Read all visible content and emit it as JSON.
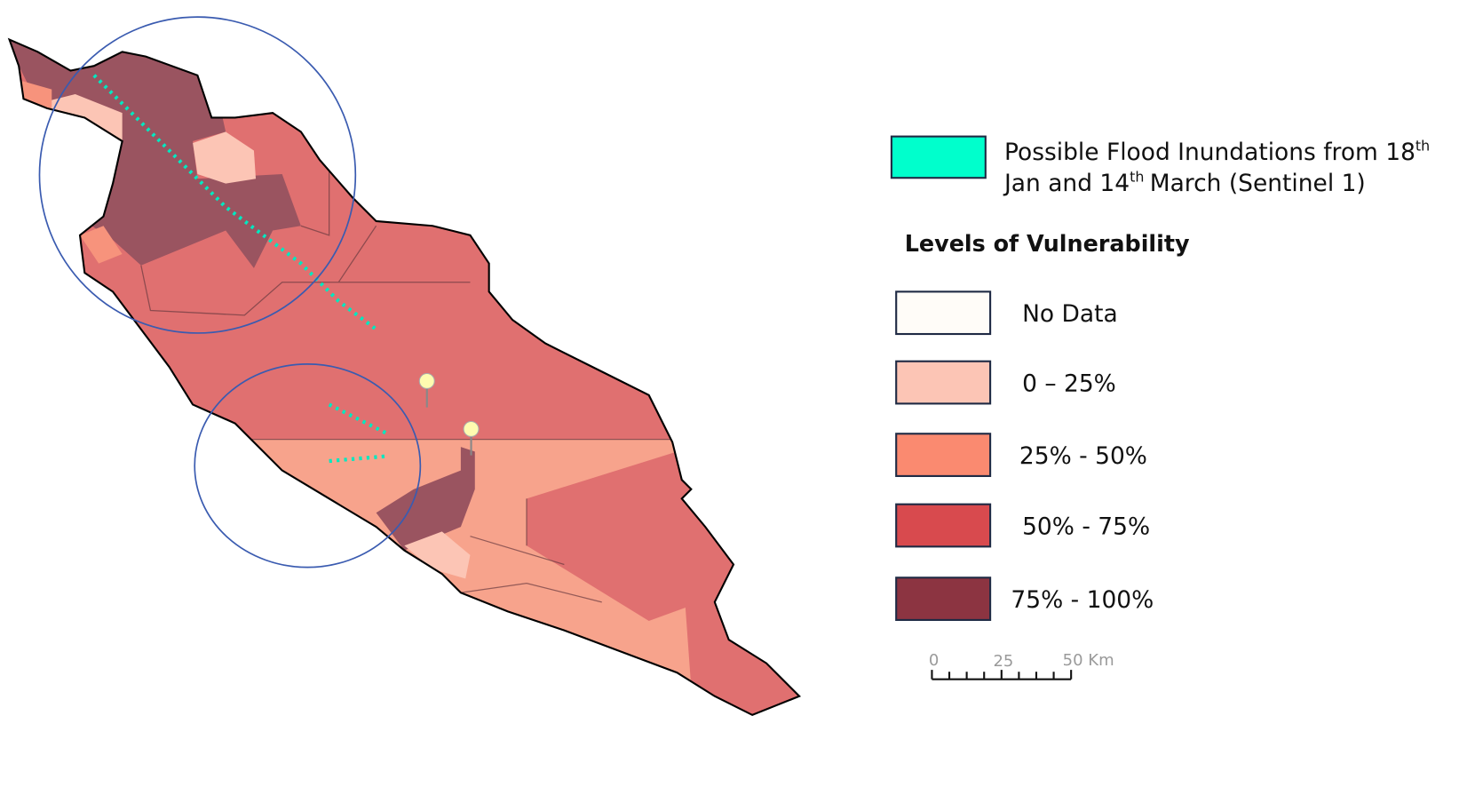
{
  "legend": {
    "flood": {
      "parts": [
        "Possible Flood Inundations from 18",
        "th",
        "Jan and 14",
        "th",
        "March (Sentinel 1)"
      ],
      "color": "#00ffcc"
    },
    "title": "Levels of Vulnerability",
    "levels": [
      {
        "label": "No Data",
        "color": "#fffcf8"
      },
      {
        "label": "0 – 25%",
        "color": "#fcc5b5"
      },
      {
        "label": "25% - 50%",
        "color": "#fa8a70"
      },
      {
        "label": "50% - 75%",
        "color": "#d84a4e"
      },
      {
        "label": "75% - 100%",
        "color": "#8c3441"
      }
    ]
  },
  "scale_bar": {
    "labels": [
      "0",
      "25",
      "50 Km"
    ]
  }
}
